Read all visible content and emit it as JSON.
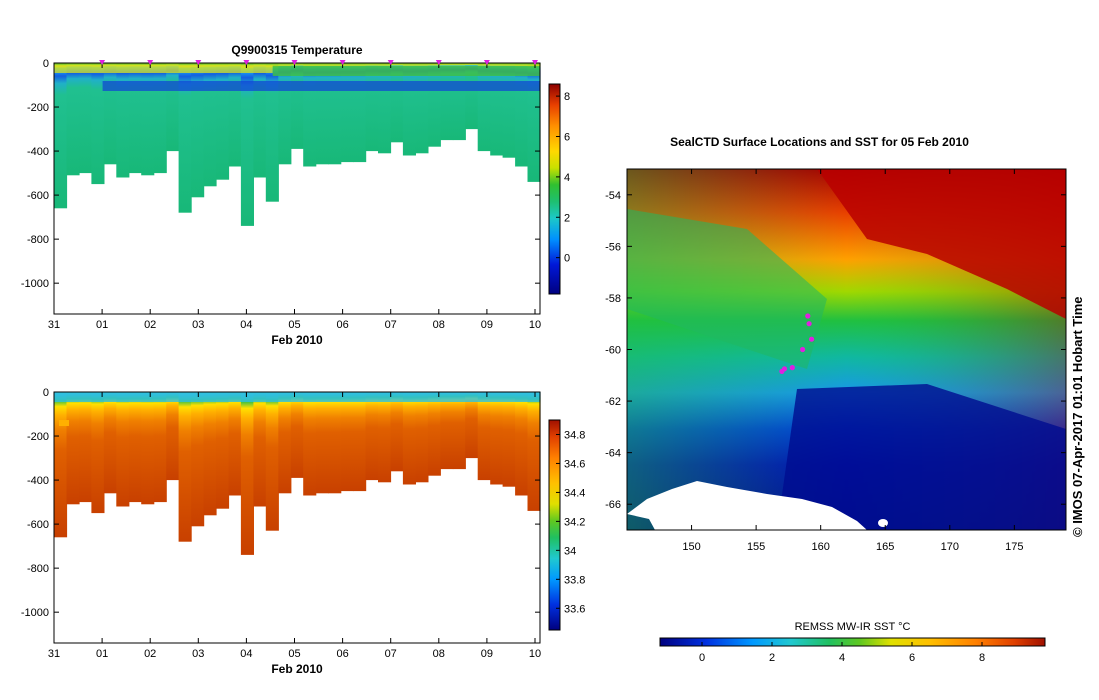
{
  "chart_data": [
    {
      "type": "heatmap",
      "title": "Q9900315  Temperature",
      "xlabel": "Feb 2010",
      "ylabel": "",
      "x_tick_labels": [
        "31",
        "01",
        "02",
        "03",
        "04",
        "05",
        "06",
        "07",
        "08",
        "09",
        "10"
      ],
      "y_ticks": [
        0,
        -200,
        -400,
        -600,
        -800,
        -1000
      ],
      "ylim": [
        -1140,
        0
      ],
      "colorbar_ticks": [
        0,
        2,
        4,
        6,
        8
      ],
      "colorbar_range": [
        -1.8,
        8.6
      ],
      "profile_markers": [
        "01",
        "02",
        "03",
        "04",
        "05",
        "06",
        "07",
        "08",
        "09",
        "10"
      ],
      "profile_max_depth_m": [
        -660,
        -510,
        -500,
        -550,
        -460,
        -520,
        -500,
        -510,
        -500,
        -400,
        -680,
        -610,
        -560,
        -530,
        -470,
        -740,
        -520,
        -630,
        -460,
        -390,
        -470,
        -460,
        -460,
        -450,
        -450,
        -400,
        -410,
        -360,
        -420,
        -410,
        -380,
        -350,
        -350,
        -300,
        -400,
        -420,
        -430,
        -470,
        -540
      ]
    },
    {
      "type": "heatmap",
      "title": "",
      "xlabel": "Feb 2010",
      "ylabel": "",
      "x_tick_labels": [
        "31",
        "01",
        "02",
        "03",
        "04",
        "05",
        "06",
        "07",
        "08",
        "09",
        "10"
      ],
      "y_ticks": [
        0,
        -200,
        -400,
        -600,
        -800,
        -1000
      ],
      "ylim": [
        -1140,
        0
      ],
      "colorbar_ticks": [
        33.6,
        33.8,
        34,
        34.2,
        34.4,
        34.6,
        34.8
      ],
      "colorbar_tick_labels": [
        "33.6",
        "33.8",
        "34",
        "34.2",
        "34.4",
        "34.6",
        "34.8"
      ],
      "colorbar_range": [
        33.45,
        34.9
      ]
    },
    {
      "type": "heatmap",
      "title": "SealCTD Surface Locations and SST for 05 Feb 2010",
      "xlabel": "",
      "ylabel": "",
      "x_ticks": [
        150,
        155,
        160,
        165,
        170,
        175
      ],
      "y_ticks": [
        -54,
        -56,
        -58,
        -60,
        -62,
        -64,
        -66
      ],
      "xlim": [
        145,
        179
      ],
      "ylim": [
        -67,
        -53
      ],
      "colorbar_label": "REMSS MW-IR SST °C",
      "colorbar_ticks": [
        0,
        2,
        4,
        6,
        8
      ],
      "colorbar_range": [
        -1.2,
        9.8
      ],
      "surface_locations": [
        {
          "lon": 157.0,
          "lat": -60.85
        },
        {
          "lon": 157.2,
          "lat": -60.75
        },
        {
          "lon": 157.8,
          "lat": -60.7
        },
        {
          "lon": 158.6,
          "lat": -60.0
        },
        {
          "lon": 159.3,
          "lat": -59.6
        },
        {
          "lon": 159.1,
          "lat": -59.0
        },
        {
          "lon": 159.0,
          "lat": -58.7
        }
      ]
    }
  ],
  "watermark": "© IMOS 07-Apr-2017 01:01 Hobart Time",
  "colors": {
    "marker": "#e020e0",
    "land": "#ffffff"
  }
}
